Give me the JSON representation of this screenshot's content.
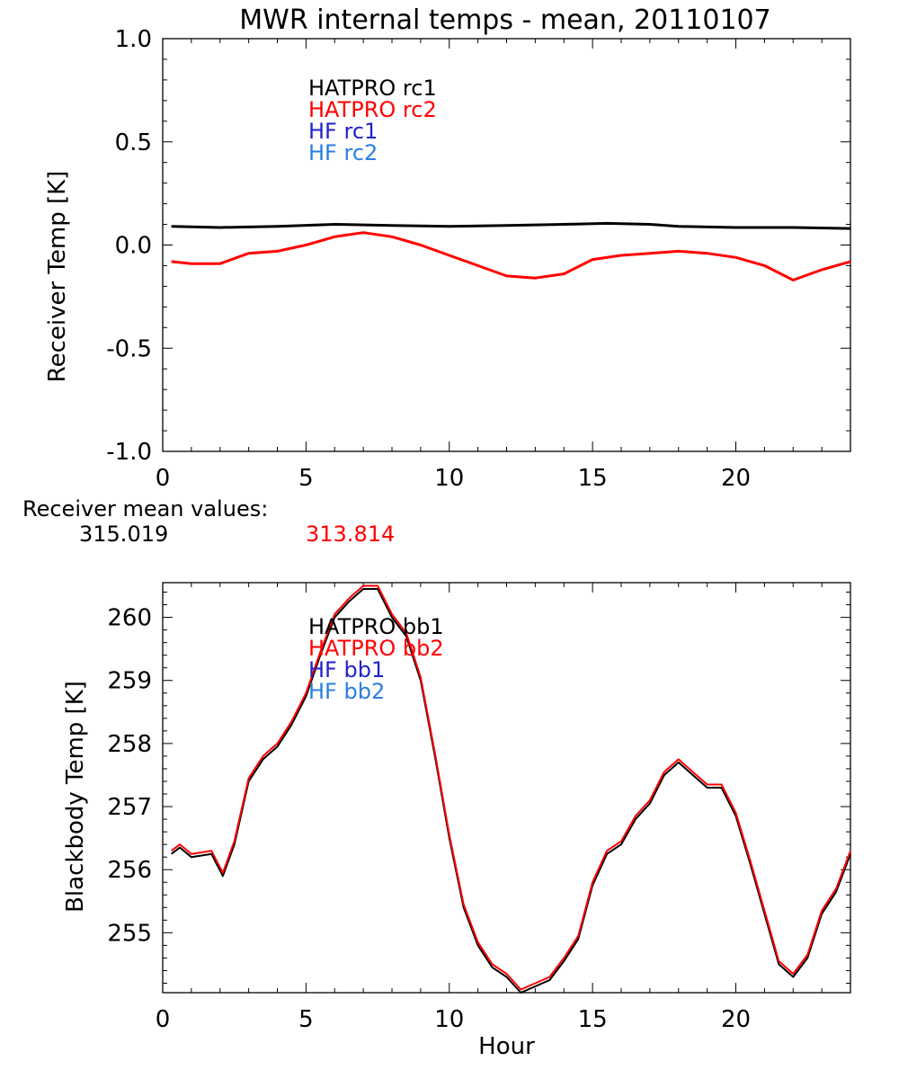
{
  "title": "MWR internal temps - mean, 20110107",
  "receiver_means": {
    "label": "Receiver mean values:",
    "rc1": "315.019",
    "rc2": "313.814"
  },
  "colors": {
    "hatpro1": "#000000",
    "hatpro2": "#ff0000",
    "hf1": "#2222cc",
    "hf2": "#2a7fe0"
  },
  "chart_data": [
    {
      "type": "line",
      "title": "MWR internal temps - mean, 20110107",
      "xlabel": "",
      "ylabel": "Receiver Temp [K]",
      "xlim": [
        0,
        24
      ],
      "ylim": [
        -1.0,
        1.0
      ],
      "xticks": [
        0,
        5,
        10,
        15,
        20
      ],
      "xtick_labels": [
        "0",
        "5",
        "10",
        "15",
        "20"
      ],
      "yticks": [
        -1.0,
        -0.5,
        0.0,
        0.5,
        1.0
      ],
      "ytick_labels": [
        "-1.0",
        "-0.5",
        "0.0",
        "0.5",
        "1.0"
      ],
      "legend": [
        "HATPRO rc1",
        "HATPRO rc2",
        "HF rc1",
        "HF rc2"
      ],
      "series": [
        {
          "name": "HATPRO rc1",
          "color": "#000000",
          "x": [
            0.3,
            2,
            4,
            6,
            8,
            10,
            12,
            14,
            15.5,
            17,
            18,
            20,
            22,
            24
          ],
          "y": [
            0.09,
            0.085,
            0.09,
            0.1,
            0.095,
            0.09,
            0.095,
            0.1,
            0.105,
            0.1,
            0.09,
            0.085,
            0.085,
            0.08
          ]
        },
        {
          "name": "HATPRO rc2",
          "color": "#ff0000",
          "x": [
            0.3,
            1,
            2,
            3,
            4,
            5,
            6,
            7,
            8,
            9,
            10,
            11,
            12,
            13,
            14,
            15,
            16,
            17,
            18,
            19,
            20,
            21,
            22,
            23,
            24
          ],
          "y": [
            -0.08,
            -0.09,
            -0.09,
            -0.04,
            -0.03,
            0.0,
            0.04,
            0.06,
            0.04,
            0.0,
            -0.05,
            -0.1,
            -0.15,
            -0.16,
            -0.14,
            -0.07,
            -0.05,
            -0.04,
            -0.03,
            -0.04,
            -0.06,
            -0.1,
            -0.17,
            -0.12,
            -0.08
          ]
        }
      ]
    },
    {
      "type": "line",
      "title": "",
      "xlabel": "Hour",
      "ylabel": "Blackbody Temp [K]",
      "xlim": [
        0,
        24
      ],
      "ylim": [
        254.05,
        260.55
      ],
      "xticks": [
        0,
        5,
        10,
        15,
        20
      ],
      "xtick_labels": [
        "0",
        "5",
        "10",
        "15",
        "20"
      ],
      "yticks": [
        255,
        256,
        257,
        258,
        259,
        260
      ],
      "ytick_labels": [
        "255",
        "256",
        "257",
        "258",
        "259",
        "260"
      ],
      "legend": [
        "HATPRO bb1",
        "HATPRO bb2",
        "HF bb1",
        "HF bb2"
      ],
      "series": [
        {
          "name": "HATPRO bb1",
          "color": "#000000",
          "x": [
            0.3,
            0.6,
            1,
            1.7,
            2.1,
            2.5,
            3,
            3.5,
            4,
            4.5,
            5,
            5.5,
            6,
            6.5,
            7,
            7.5,
            8,
            8.5,
            9,
            9.5,
            10,
            10.5,
            11,
            11.5,
            12,
            12.5,
            13,
            13.5,
            14,
            14.5,
            15,
            15.5,
            16,
            16.5,
            17,
            17.5,
            18,
            18.5,
            19,
            19.5,
            20,
            20.5,
            21,
            21.5,
            22,
            22.5,
            23,
            23.5,
            24
          ],
          "y": [
            256.25,
            256.35,
            256.2,
            256.25,
            255.9,
            256.4,
            257.4,
            257.75,
            257.95,
            258.3,
            258.75,
            259.4,
            260.0,
            260.25,
            260.45,
            260.45,
            260.0,
            259.7,
            259.0,
            257.8,
            256.5,
            255.4,
            254.8,
            254.45,
            254.3,
            254.05,
            254.15,
            254.25,
            254.55,
            254.9,
            255.75,
            256.25,
            256.4,
            256.8,
            257.05,
            257.5,
            257.7,
            257.5,
            257.3,
            257.3,
            256.85,
            256.1,
            255.3,
            254.5,
            254.3,
            254.6,
            255.3,
            255.65,
            256.25
          ]
        },
        {
          "name": "HATPRO bb2",
          "color": "#ff0000",
          "x": [
            0.3,
            0.6,
            1,
            1.7,
            2.1,
            2.5,
            3,
            3.5,
            4,
            4.5,
            5,
            5.5,
            6,
            6.5,
            7,
            7.5,
            8,
            8.5,
            9,
            9.5,
            10,
            10.5,
            11,
            11.5,
            12,
            12.5,
            13,
            13.5,
            14,
            14.5,
            15,
            15.5,
            16,
            16.5,
            17,
            17.5,
            18,
            18.5,
            19,
            19.5,
            20,
            20.5,
            21,
            21.5,
            22,
            22.5,
            23,
            23.5,
            24
          ],
          "y": [
            256.3,
            256.4,
            256.25,
            256.3,
            255.95,
            256.45,
            257.45,
            257.8,
            258.0,
            258.35,
            258.8,
            259.45,
            260.05,
            260.3,
            260.5,
            260.5,
            260.05,
            259.75,
            259.05,
            257.85,
            256.55,
            255.45,
            254.85,
            254.5,
            254.35,
            254.1,
            254.2,
            254.3,
            254.6,
            254.95,
            255.8,
            256.3,
            256.45,
            256.85,
            257.1,
            257.55,
            257.75,
            257.55,
            257.35,
            257.35,
            256.9,
            256.15,
            255.35,
            254.55,
            254.35,
            254.65,
            255.35,
            255.7,
            256.3
          ]
        }
      ]
    }
  ]
}
